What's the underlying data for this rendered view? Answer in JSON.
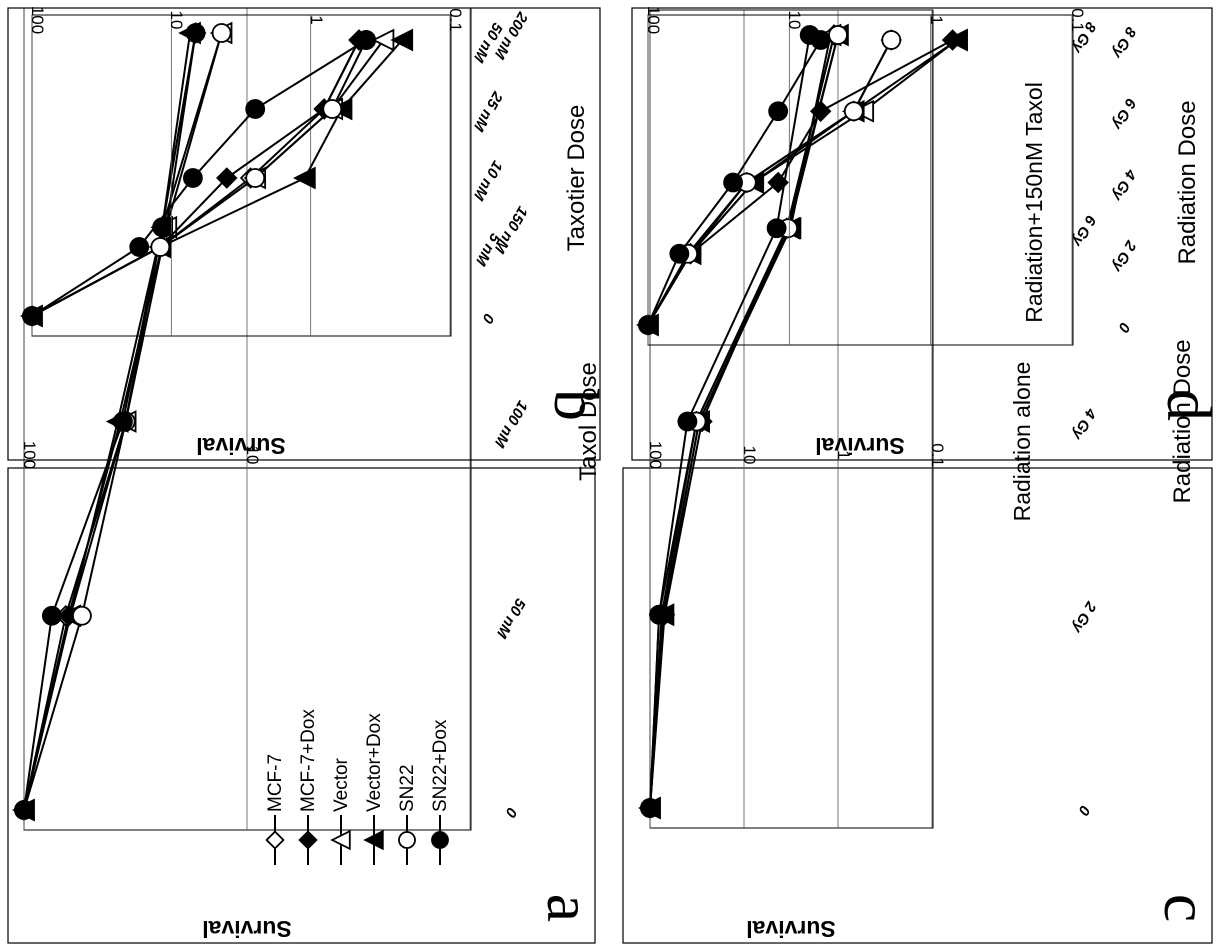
{
  "figure": {
    "panels": [
      {
        "id": "a",
        "letter": "a",
        "ylabel": "Survival",
        "xlabel": "Taxol Dose",
        "annotation": "",
        "yticks": [
          "100",
          "10",
          "1"
        ],
        "xticks": [
          "0",
          "50 nM",
          "100 nM",
          "150 nM",
          "200 nM"
        ]
      },
      {
        "id": "b",
        "letter": "b",
        "ylabel": "Survival",
        "xlabel": "Taxotier Dose",
        "annotation": "",
        "yticks": [
          "100",
          "10",
          "1",
          "0.1"
        ],
        "xticks": [
          "0",
          "5 nM",
          "10 nM",
          "25 nM",
          "50 nM"
        ]
      },
      {
        "id": "c",
        "letter": "c",
        "ylabel": "Survival",
        "xlabel": "Radiation Dose",
        "annotation": "Radiation  alone",
        "yticks": [
          "100",
          "10",
          "1",
          "0.1"
        ],
        "xticks": [
          "0",
          "2 Gy",
          "4 Gy",
          "6 Gy",
          "8 Gy"
        ]
      },
      {
        "id": "d",
        "letter": "d",
        "ylabel": "Survival",
        "xlabel": "Radiation Dose",
        "annotation": "Radiation+150nM  Taxol",
        "yticks": [
          "100",
          "10",
          "1",
          "0.1"
        ],
        "xticks": [
          "0",
          "2 Gy",
          "4 Gy",
          "6 Gy",
          "8 Gy"
        ]
      }
    ],
    "legend": {
      "entries": [
        "MCF-7",
        "MCF-7+Dox",
        "Vector",
        "Vector+Dox",
        "SN22",
        "SN22+Dox"
      ]
    }
  },
  "chart_data": [
    {
      "panel": "a",
      "type": "line",
      "xlabel": "Taxol Dose",
      "ylabel": "Survival",
      "y_scale": "log",
      "ylim": [
        1,
        100
      ],
      "x": [
        "0",
        "50 nM",
        "100 nM",
        "150 nM",
        "200 nM"
      ],
      "legend_entries": [
        "MCF-7",
        "MCF-7+Dox",
        "Vector",
        "Vector+Dox",
        "SN22",
        "SN22+Dox"
      ],
      "series": [
        {
          "name": "MCF-7",
          "marker": "open-diamond",
          "values": [
            100,
            65,
            35,
            24,
            17
          ]
        },
        {
          "name": "MCF-7+Dox",
          "marker": "filled-diamond",
          "values": [
            100,
            63,
            37,
            23,
            17
          ]
        },
        {
          "name": "Vector",
          "marker": "open-triangle",
          "values": [
            100,
            62,
            35,
            23,
            13
          ]
        },
        {
          "name": "Vector+Dox",
          "marker": "filled-triangle",
          "values": [
            100,
            62,
            38,
            24,
            18
          ]
        },
        {
          "name": "SN22",
          "marker": "open-circle",
          "values": [
            100,
            55,
            35,
            24,
            13
          ]
        },
        {
          "name": "SN22+Dox",
          "marker": "filled-circle",
          "values": [
            100,
            75,
            36,
            24,
            17
          ]
        }
      ]
    },
    {
      "panel": "b",
      "type": "line",
      "xlabel": "Taxotier Dose",
      "ylabel": "Survival",
      "y_scale": "log",
      "ylim": [
        0.1,
        100
      ],
      "x": [
        "0",
        "5 nM",
        "10 nM",
        "25 nM",
        "50 nM"
      ],
      "series": [
        {
          "name": "MCF-7",
          "marker": "open-diamond",
          "values": [
            100,
            12,
            2.7,
            0.8,
            0.45
          ]
        },
        {
          "name": "MCF-7+Dox",
          "marker": "filled-diamond",
          "values": [
            100,
            12,
            4,
            0.8,
            0.45
          ]
        },
        {
          "name": "Vector",
          "marker": "open-triangle",
          "values": [
            100,
            12,
            2.5,
            0.7,
            0.3
          ]
        },
        {
          "name": "Vector+Dox",
          "marker": "filled-triangle",
          "values": [
            100,
            12,
            1.1,
            0.6,
            0.22
          ]
        },
        {
          "name": "SN22",
          "marker": "open-circle",
          "values": [
            100,
            12,
            2.5,
            0.7,
            0.4
          ]
        },
        {
          "name": "SN22+Dox",
          "marker": "filled-circle",
          "values": [
            100,
            17,
            7,
            2.5,
            0.4
          ]
        }
      ]
    },
    {
      "panel": "c",
      "type": "line",
      "xlabel": "Radiation Dose",
      "ylabel": "Survival",
      "y_scale": "log",
      "ylim": [
        0.1,
        100
      ],
      "x": [
        "0",
        "2 Gy",
        "4 Gy",
        "6 Gy",
        "8 Gy"
      ],
      "series": [
        {
          "name": "MCF-7",
          "marker": "open-diamond",
          "values": [
            100,
            75,
            32,
            3.5,
            1.1
          ]
        },
        {
          "name": "MCF-7+Dox",
          "marker": "filled-diamond",
          "values": [
            100,
            70,
            28,
            3.5,
            1.1
          ]
        },
        {
          "name": "Vector",
          "marker": "open-triangle",
          "values": [
            100,
            72,
            30,
            3.2,
            1.2
          ]
        },
        {
          "name": "Vector+Dox",
          "marker": "filled-triangle",
          "values": [
            100,
            72,
            30,
            3.3,
            1.0
          ]
        },
        {
          "name": "SN22",
          "marker": "open-circle",
          "values": [
            100,
            80,
            32,
            3.4,
            1.0
          ]
        },
        {
          "name": "SN22+Dox",
          "marker": "filled-circle",
          "values": [
            100,
            80,
            40,
            4.5,
            2.0
          ]
        }
      ]
    },
    {
      "panel": "d",
      "type": "line",
      "xlabel": "Radiation Dose",
      "ylabel": "Survival",
      "y_scale": "log",
      "ylim": [
        0.1,
        100
      ],
      "x": [
        "0",
        "2 Gy",
        "4 Gy",
        "6 Gy",
        "8 Gy"
      ],
      "series": [
        {
          "name": "MCF-7",
          "marker": "open-diamond",
          "values": [
            100,
            50,
            20,
            3.5,
            1.9
          ]
        },
        {
          "name": "MCF-7+Dox",
          "marker": "filled-diamond",
          "values": [
            100,
            50,
            12,
            6,
            0.7
          ]
        },
        {
          "name": "Vector",
          "marker": "open-triangle",
          "values": [
            100,
            50,
            18,
            3,
            0.65
          ]
        },
        {
          "name": "Vector+Dox",
          "marker": "filled-triangle",
          "values": [
            100,
            50,
            18,
            3.5,
            0.65
          ]
        },
        {
          "name": "SN22",
          "marker": "open-circle",
          "values": [
            100,
            52,
            20,
            3.5,
            1.9
          ]
        },
        {
          "name": "SN22+Dox",
          "marker": "filled-circle",
          "values": [
            100,
            60,
            25,
            12,
            6
          ]
        }
      ]
    }
  ]
}
